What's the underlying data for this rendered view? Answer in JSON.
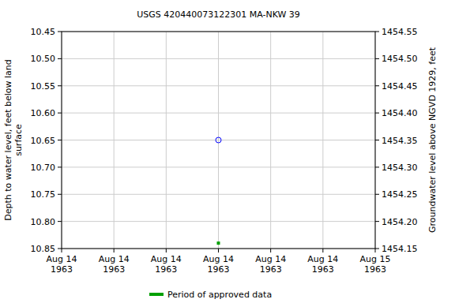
{
  "chart_data": {
    "type": "scatter",
    "title": "USGS 420440073122301 MA-NKW   39",
    "y_label": "Depth to water level, feet below land\nsurface",
    "y2_label": "Groundwater level above NGVD 1929, feet",
    "categories": [
      "Aug 14\n1963",
      "Aug 14\n1963",
      "Aug 14\n1963",
      "Aug 14\n1963",
      "Aug 14\n1963",
      "Aug 14\n1963",
      "Aug 15\n1963"
    ],
    "series": [
      {
        "color": "#0000ff",
        "marker": "circle",
        "values": [
          null,
          null,
          null,
          10.65,
          null,
          null,
          null
        ]
      },
      {
        "name": "Period of approved data",
        "color": "#00a000",
        "marker": "square",
        "values": [
          null,
          null,
          null,
          10.84,
          null,
          null,
          null
        ]
      }
    ],
    "ylim": [
      10.85,
      10.45
    ],
    "yticks": [
      10.45,
      {
        "value": 10.5,
        "label": "10.50"
      },
      10.55,
      {
        "value": 10.6,
        "label": "10.60"
      },
      10.65,
      {
        "value": 10.7,
        "label": "10.70"
      },
      10.75,
      {
        "value": 10.8,
        "label": "10.80"
      },
      10.85
    ],
    "y2lim": [
      1454.15,
      1454.55
    ],
    "y2ticks": [
      1454.15,
      {
        "value": 1454.2,
        "label": "1454.20"
      },
      1454.25,
      {
        "value": 1454.3,
        "label": "1454.30"
      },
      1454.35,
      {
        "value": 1454.4,
        "label": "1454.40"
      },
      1454.45,
      {
        "value": 1454.5,
        "label": "1454.50"
      },
      1454.55
    ],
    "grid": true,
    "legend": "bottom"
  }
}
